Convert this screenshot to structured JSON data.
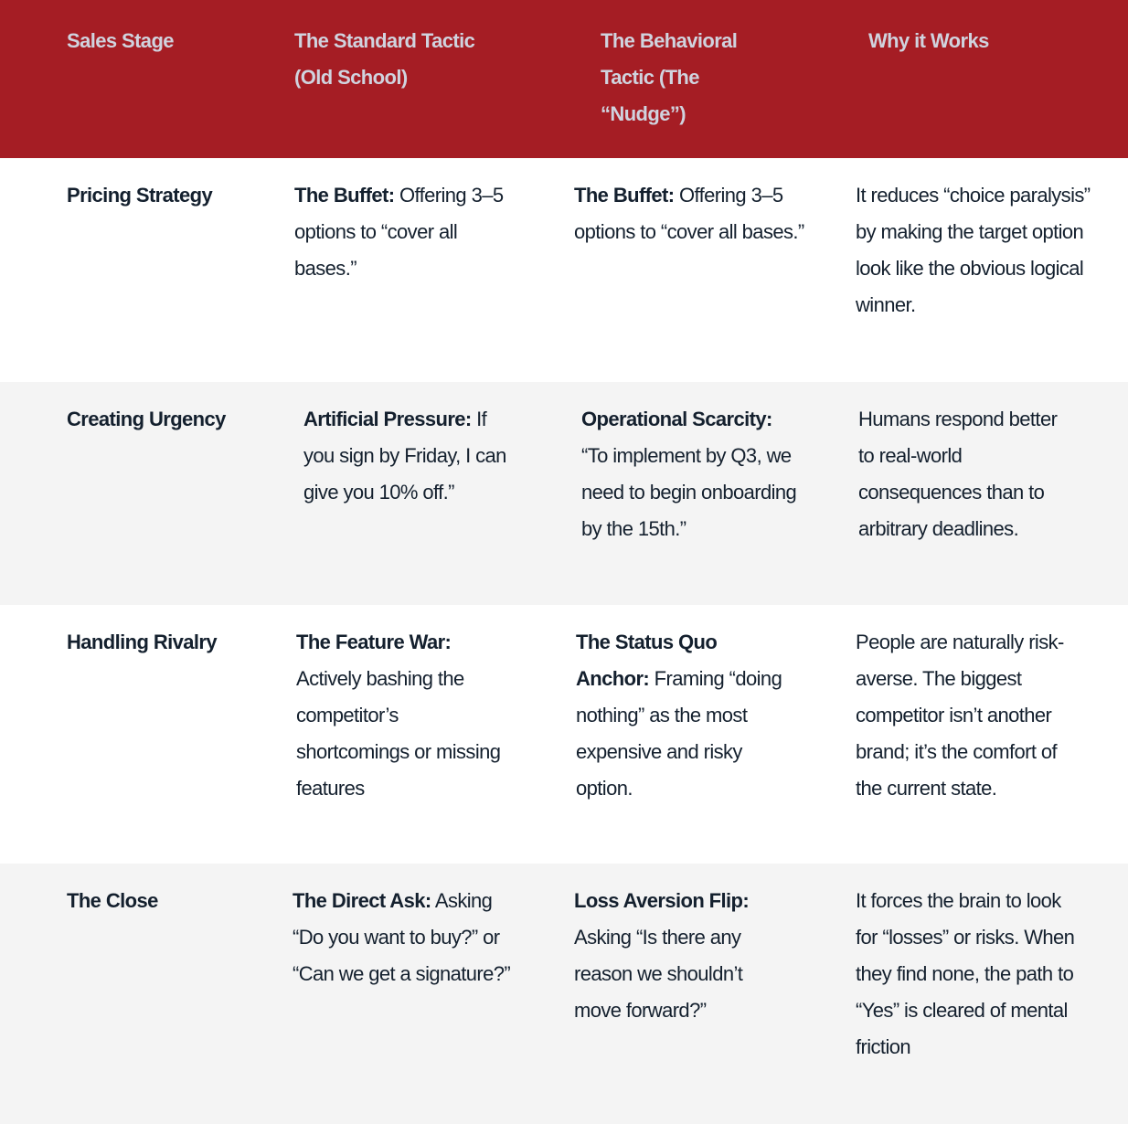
{
  "colors": {
    "header_bg": "#a51d24",
    "header_text": "#d0d3de",
    "body_text": "#14202e",
    "alt_row": "#f4f4f4"
  },
  "headers": [
    "Sales Stage",
    "The Standard Tactic (Old School)",
    "The Behavioral Tactic (The “Nudge”)",
    "Why it Works"
  ],
  "rows": [
    {
      "stage": "Pricing Strategy",
      "standard": {
        "label": "The Buffet:",
        "text": " Offering 3–5 options to “cover all bases.”"
      },
      "behavioral": {
        "label": "The Buffet:",
        "text": " Offering 3–5 options to “cover all bases.”"
      },
      "why": "It reduces “choice paralysis” by making the target option look like the obvious logical winner."
    },
    {
      "stage": "Creating Urgency",
      "standard": {
        "label": "Artificial Pressure:",
        "text": " If you sign by Friday, I can give you 10% off.”"
      },
      "behavioral": {
        "label": "Operational Scarcity:",
        "text": " “To implement by Q3, we need to begin onboarding by the 15th.”"
      },
      "why": "Humans respond better to real-world consequences than to arbitrary deadlines."
    },
    {
      "stage": "Handling Rivalry",
      "standard": {
        "label": "The Feature War:",
        "text": " Actively bashing the competitor’s shortcomings or missing features"
      },
      "behavioral": {
        "label": "The Status Quo Anchor:",
        "text": " Framing “doing nothing” as the most expensive and risky option."
      },
      "why": "People are naturally risk-averse. The biggest competitor isn’t another brand; it’s the comfort of the current state."
    },
    {
      "stage": "The Close",
      "standard": {
        "label": "The Direct Ask:",
        "text": " Asking “Do you want to buy?” or “Can we get a signature?”"
      },
      "behavioral": {
        "label": "Loss Aversion Flip:",
        "text": " Asking “Is there any reason we shouldn’t move forward?”"
      },
      "why": "It forces the brain to look for “losses” or risks. When they find none, the path to “Yes” is cleared of mental friction"
    }
  ]
}
